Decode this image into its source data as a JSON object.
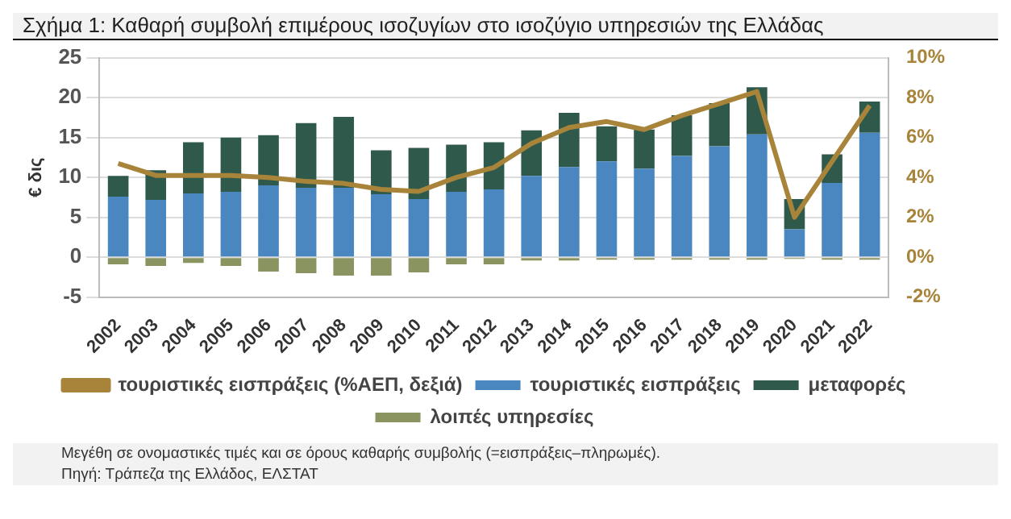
{
  "chart_data": {
    "type": "bar",
    "title": "Σχήμα 1:  Καθαρή συμβολή επιμέρους ισοζυγίων στο ισοζύγιο υπηρεσιών της Ελλάδας",
    "ylabel": "€ δις",
    "stacked": true,
    "grid": "y",
    "legend": "bottom",
    "categories": [
      "2002",
      "2003",
      "2004",
      "2005",
      "2006",
      "2007",
      "2008",
      "2009",
      "2010",
      "2011",
      "2012",
      "2013",
      "2014",
      "2015",
      "2016",
      "2017",
      "2018",
      "2019",
      "2020",
      "2021",
      "2022"
    ],
    "series": [
      {
        "name": "τουριστικές εισπράξεις",
        "color": "#4a86bf",
        "values": [
          7.6,
          7.2,
          8.0,
          8.2,
          9.0,
          8.7,
          8.7,
          7.9,
          7.3,
          8.2,
          8.5,
          10.2,
          11.3,
          12.0,
          11.1,
          12.7,
          13.9,
          15.4,
          3.5,
          9.3,
          15.6
        ]
      },
      {
        "name": "μεταφορές",
        "color": "#2f5a4b",
        "values": [
          2.6,
          3.7,
          6.4,
          6.8,
          6.3,
          8.1,
          8.9,
          5.5,
          6.4,
          5.9,
          5.9,
          5.7,
          6.8,
          4.4,
          4.9,
          5.1,
          5.4,
          5.9,
          3.8,
          3.6,
          3.9
        ]
      },
      {
        "name": "λοιπές υπηρεσίες",
        "color": "#8a9460",
        "values": [
          -0.9,
          -1.1,
          -0.7,
          -1.1,
          -1.8,
          -2.0,
          -2.3,
          -2.3,
          -1.9,
          -0.9,
          -0.9,
          -0.4,
          -0.4,
          -0.3,
          -0.3,
          -0.3,
          -0.3,
          -0.3,
          -0.2,
          -0.3,
          -0.3
        ]
      },
      {
        "name": "τουριστικές εισπράξεις (%ΑΕΠ, δεξιά)",
        "type": "line",
        "axis": "y2",
        "color": "#a8843a",
        "values": [
          4.7,
          4.1,
          4.1,
          4.1,
          4.0,
          3.8,
          3.7,
          3.4,
          3.3,
          4.0,
          4.5,
          5.7,
          6.5,
          6.8,
          6.4,
          7.1,
          7.7,
          8.3,
          2.0,
          4.8,
          7.6
        ]
      }
    ],
    "ylim": [
      -5,
      25
    ],
    "yticks": [
      -5,
      0,
      5,
      10,
      15,
      20,
      25
    ],
    "y2lim": [
      -2,
      10
    ],
    "y2ticks": [
      {
        "value": -2,
        "label": "-2%"
      },
      {
        "value": 0,
        "label": "0%"
      },
      {
        "value": 2,
        "label": "2%"
      },
      {
        "value": 4,
        "label": "4%"
      },
      {
        "value": 6,
        "label": "6%"
      },
      {
        "value": 8,
        "label": "8%"
      },
      {
        "value": 10,
        "label": "10%"
      }
    ],
    "annotations": [
      "Μεγέθη σε ονομαστικές τιμές και σε όρους καθαρής συμβολής (=εισπράξεις–πληρωμές).",
      "Πηγή: Τράπεζα της Ελλάδος, ΕΛΣΤΑΤ"
    ]
  }
}
